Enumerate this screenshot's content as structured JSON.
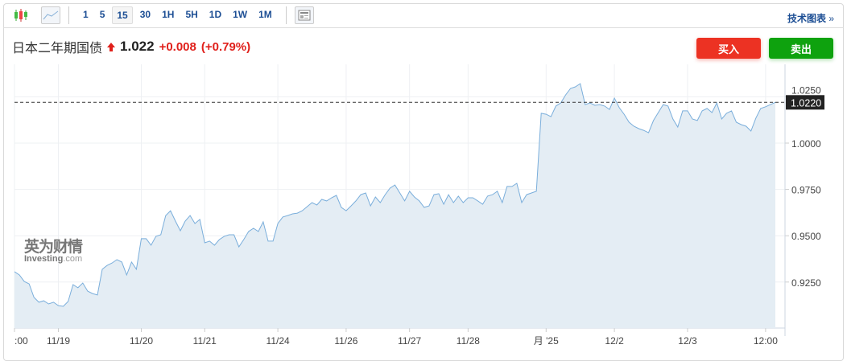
{
  "toolbar": {
    "intervals": [
      "1",
      "5",
      "15",
      "30",
      "1H",
      "5H",
      "1D",
      "1W",
      "1M"
    ],
    "active_interval": "15",
    "technical_chart_label": "技术图表",
    "technical_chart_arrow": "»"
  },
  "header": {
    "instrument": "日本二年期国债",
    "direction": "up",
    "price": "1.022",
    "change": "+0.008",
    "change_pct": "(+0.79%)"
  },
  "actions": {
    "buy": "买入",
    "sell": "卖出"
  },
  "watermark": {
    "brand_cn": "英为财情",
    "brand_en": "Investing",
    ".com": ".com"
  },
  "colors": {
    "line": "#7aaedb",
    "fill": "#e4edf4",
    "buy": "#ec3223",
    "sell": "#0ea20e",
    "up": "#e0201b",
    "link": "#1c4e94"
  },
  "chart_data": {
    "type": "area",
    "current_price_label": "1.0220",
    "current_price": 1.022,
    "ylim": [
      0.9,
      1.034
    ],
    "y_ticks": [
      {
        "v": 1.025,
        "label": "1.0250"
      },
      {
        "v": 1.0,
        "label": "1.0000"
      },
      {
        "v": 0.975,
        "label": "0.9750"
      },
      {
        "v": 0.95,
        "label": "0.9500"
      },
      {
        "v": 0.925,
        "label": "0.9250"
      }
    ],
    "x_ticks": [
      {
        "i": 0,
        "label": ":00"
      },
      {
        "i": 9,
        "label": "11/19"
      },
      {
        "i": 26,
        "label": "11/20"
      },
      {
        "i": 39,
        "label": "11/21"
      },
      {
        "i": 54,
        "label": "11/24"
      },
      {
        "i": 68,
        "label": "11/26"
      },
      {
        "i": 81,
        "label": "11/27"
      },
      {
        "i": 93,
        "label": "11/28"
      },
      {
        "i": 109,
        "label": "月 '25"
      },
      {
        "i": 123,
        "label": "12/2"
      },
      {
        "i": 138,
        "label": "12/3"
      },
      {
        "i": 154,
        "label": "12:00"
      }
    ],
    "grid": true,
    "values": [
      0.9306,
      0.9288,
      0.9253,
      0.924,
      0.9167,
      0.9141,
      0.9149,
      0.9132,
      0.9141,
      0.9123,
      0.9119,
      0.9145,
      0.9236,
      0.9219,
      0.9245,
      0.9201,
      0.9188,
      0.918,
      0.9319,
      0.934,
      0.9353,
      0.9371,
      0.9358,
      0.9288,
      0.9358,
      0.9319,
      0.9484,
      0.9484,
      0.9449,
      0.9497,
      0.9505,
      0.9609,
      0.9635,
      0.9579,
      0.9527,
      0.9579,
      0.9609,
      0.9566,
      0.9588,
      0.9462,
      0.9471,
      0.9449,
      0.9479,
      0.9497,
      0.9505,
      0.9505,
      0.944,
      0.9479,
      0.9523,
      0.954,
      0.9523,
      0.9575,
      0.9471,
      0.9471,
      0.9566,
      0.9601,
      0.9609,
      0.9618,
      0.9622,
      0.9635,
      0.9657,
      0.9679,
      0.9666,
      0.9696,
      0.9688,
      0.9705,
      0.9718,
      0.9653,
      0.9635,
      0.9661,
      0.9688,
      0.9722,
      0.9731,
      0.9661,
      0.9709,
      0.9679,
      0.9722,
      0.9757,
      0.9774,
      0.9731,
      0.9688,
      0.974,
      0.9709,
      0.9688,
      0.9653,
      0.9661,
      0.9722,
      0.9727,
      0.967,
      0.9722,
      0.9679,
      0.9714,
      0.9679,
      0.9705,
      0.9705,
      0.9688,
      0.967,
      0.9714,
      0.9722,
      0.974,
      0.9679,
      0.9766,
      0.9766,
      0.9783,
      0.9679,
      0.9722,
      0.9731,
      0.974,
      1.0161,
      1.0156,
      1.0143,
      1.02,
      1.0217,
      1.026,
      1.0295,
      1.0304,
      1.0321,
      1.0208,
      1.0217,
      1.0204,
      1.0208,
      1.02,
      1.0182,
      1.0243,
      1.0191,
      1.0156,
      1.0113,
      1.0091,
      1.0078,
      1.0069,
      1.0056,
      1.0122,
      1.0165,
      1.0208,
      1.02,
      1.013,
      1.0087,
      1.0174,
      1.0174,
      1.013,
      1.0122,
      1.0174,
      1.0187,
      1.0165,
      1.0217,
      1.013,
      1.0161,
      1.0174,
      1.0113,
      1.01,
      1.0091,
      1.0065,
      1.0135,
      1.0187,
      1.0196,
      1.0208,
      1.022
    ]
  }
}
